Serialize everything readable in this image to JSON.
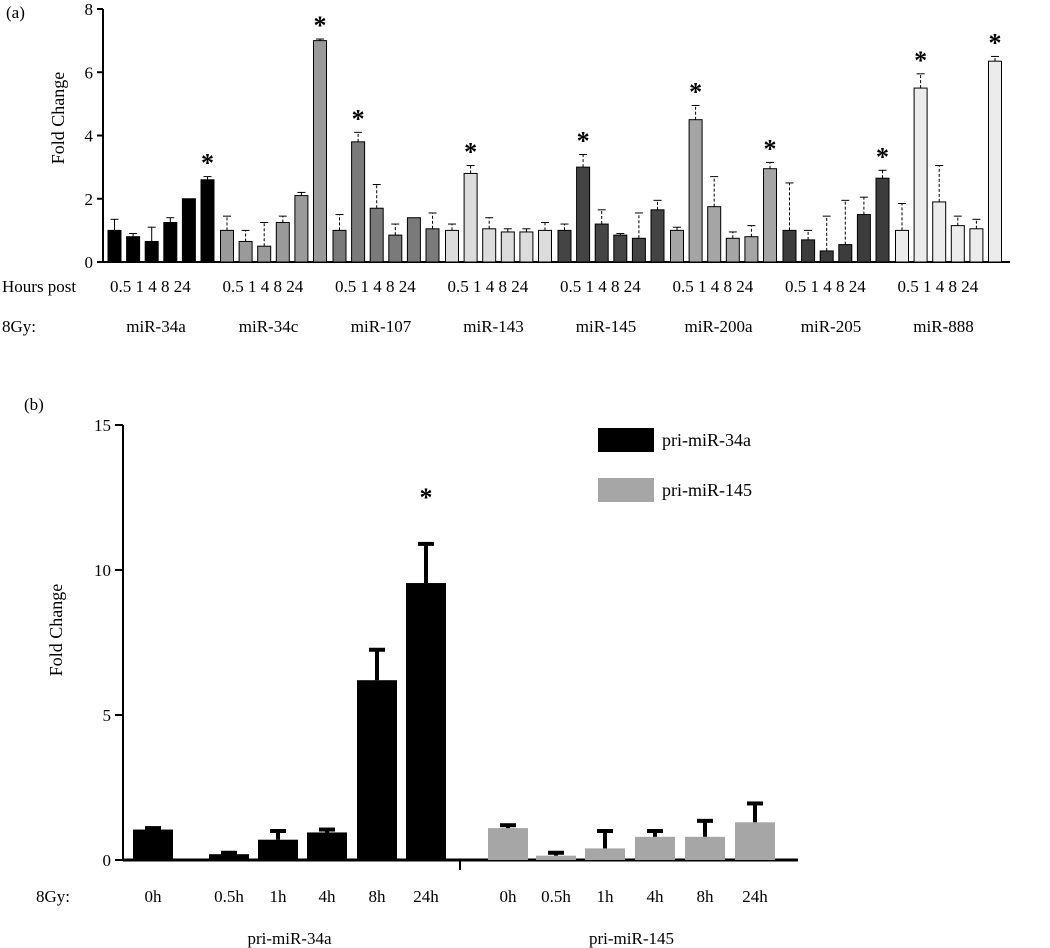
{
  "chart_data": [
    {
      "type": "bar",
      "panel_label": "(a)",
      "ylabel": "Fold Change",
      "ylim": [
        0,
        8
      ],
      "yticks": [
        0,
        2,
        4,
        6,
        8
      ],
      "row_label_1": "Hours post",
      "row_label_2": "8Gy:",
      "time_labels": [
        "0.5",
        "1",
        "4",
        "8",
        "24"
      ],
      "groups": [
        {
          "name": "miR-34a",
          "color": "#000000",
          "values": [
            1.0,
            0.8,
            0.65,
            1.25,
            2.0,
            2.6
          ],
          "errors": [
            0.35,
            0.1,
            0.45,
            0.15,
            0.0,
            0.1
          ],
          "stars": [
            false,
            false,
            false,
            false,
            false,
            true
          ]
        },
        {
          "name": "miR-34c",
          "color": "#9a9a9a",
          "values": [
            1.0,
            0.65,
            0.5,
            1.25,
            2.1,
            7.0
          ],
          "errors": [
            0.45,
            0.35,
            0.75,
            0.2,
            0.1,
            0.05
          ],
          "stars": [
            false,
            false,
            false,
            false,
            false,
            true
          ]
        },
        {
          "name": "miR-107",
          "color": "#7a7a7a",
          "values": [
            1.0,
            3.8,
            1.7,
            0.85,
            1.4,
            1.05
          ],
          "errors": [
            0.5,
            0.3,
            0.75,
            0.35,
            0.0,
            0.5
          ],
          "stars": [
            false,
            true,
            false,
            false,
            false,
            false
          ]
        },
        {
          "name": "miR-143",
          "color": "#dcdcdc",
          "values": [
            1.0,
            2.8,
            1.05,
            0.95,
            0.95,
            1.0
          ],
          "errors": [
            0.2,
            0.25,
            0.35,
            0.1,
            0.1,
            0.25
          ],
          "stars": [
            false,
            true,
            false,
            false,
            false,
            false
          ]
        },
        {
          "name": "miR-145",
          "color": "#444444",
          "values": [
            1.0,
            3.0,
            1.2,
            0.85,
            0.75,
            1.65
          ],
          "errors": [
            0.2,
            0.4,
            0.45,
            0.05,
            0.8,
            0.3
          ],
          "stars": [
            false,
            true,
            false,
            false,
            false,
            false
          ]
        },
        {
          "name": "miR-200a",
          "color": "#a5a5a5",
          "values": [
            1.0,
            4.5,
            1.75,
            0.75,
            0.8,
            2.95
          ],
          "errors": [
            0.1,
            0.45,
            0.95,
            0.2,
            0.35,
            0.2
          ],
          "stars": [
            false,
            true,
            false,
            false,
            false,
            true
          ]
        },
        {
          "name": "miR-205",
          "color": "#3c3c3c",
          "values": [
            1.0,
            0.7,
            0.35,
            0.55,
            1.5,
            2.65
          ],
          "errors": [
            1.5,
            0.3,
            1.1,
            1.4,
            0.55,
            0.25
          ],
          "stars": [
            false,
            false,
            false,
            false,
            false,
            true
          ]
        },
        {
          "name": "miR-888",
          "color": "#ececec",
          "values": [
            1.0,
            5.5,
            1.9,
            1.15,
            1.05,
            6.35
          ],
          "errors": [
            0.85,
            0.45,
            1.15,
            0.3,
            0.3,
            0.15
          ],
          "stars": [
            false,
            true,
            false,
            false,
            false,
            true
          ]
        }
      ]
    },
    {
      "type": "bar",
      "panel_label": "(b)",
      "ylabel": "Fold Change",
      "ylim": [
        0,
        15
      ],
      "yticks": [
        0,
        5,
        10,
        15
      ],
      "row_label": "8Gy:",
      "categories": [
        "0h",
        "0.5h",
        "1h",
        "4h",
        "8h",
        "24h"
      ],
      "series": [
        {
          "name": "pri-miR-34a",
          "color": "#000000",
          "values": [
            1.05,
            0.2,
            0.7,
            0.95,
            6.2,
            9.55
          ],
          "errors": [
            0.05,
            0.05,
            0.3,
            0.1,
            1.05,
            1.35
          ],
          "stars": [
            false,
            false,
            false,
            false,
            false,
            true
          ]
        },
        {
          "name": "pri-miR-145",
          "color": "#a6a6a6",
          "values": [
            1.1,
            0.15,
            0.4,
            0.8,
            0.8,
            1.3
          ],
          "errors": [
            0.1,
            0.1,
            0.6,
            0.2,
            0.55,
            0.65
          ],
          "stars": [
            false,
            false,
            false,
            false,
            false,
            false
          ]
        }
      ]
    }
  ]
}
